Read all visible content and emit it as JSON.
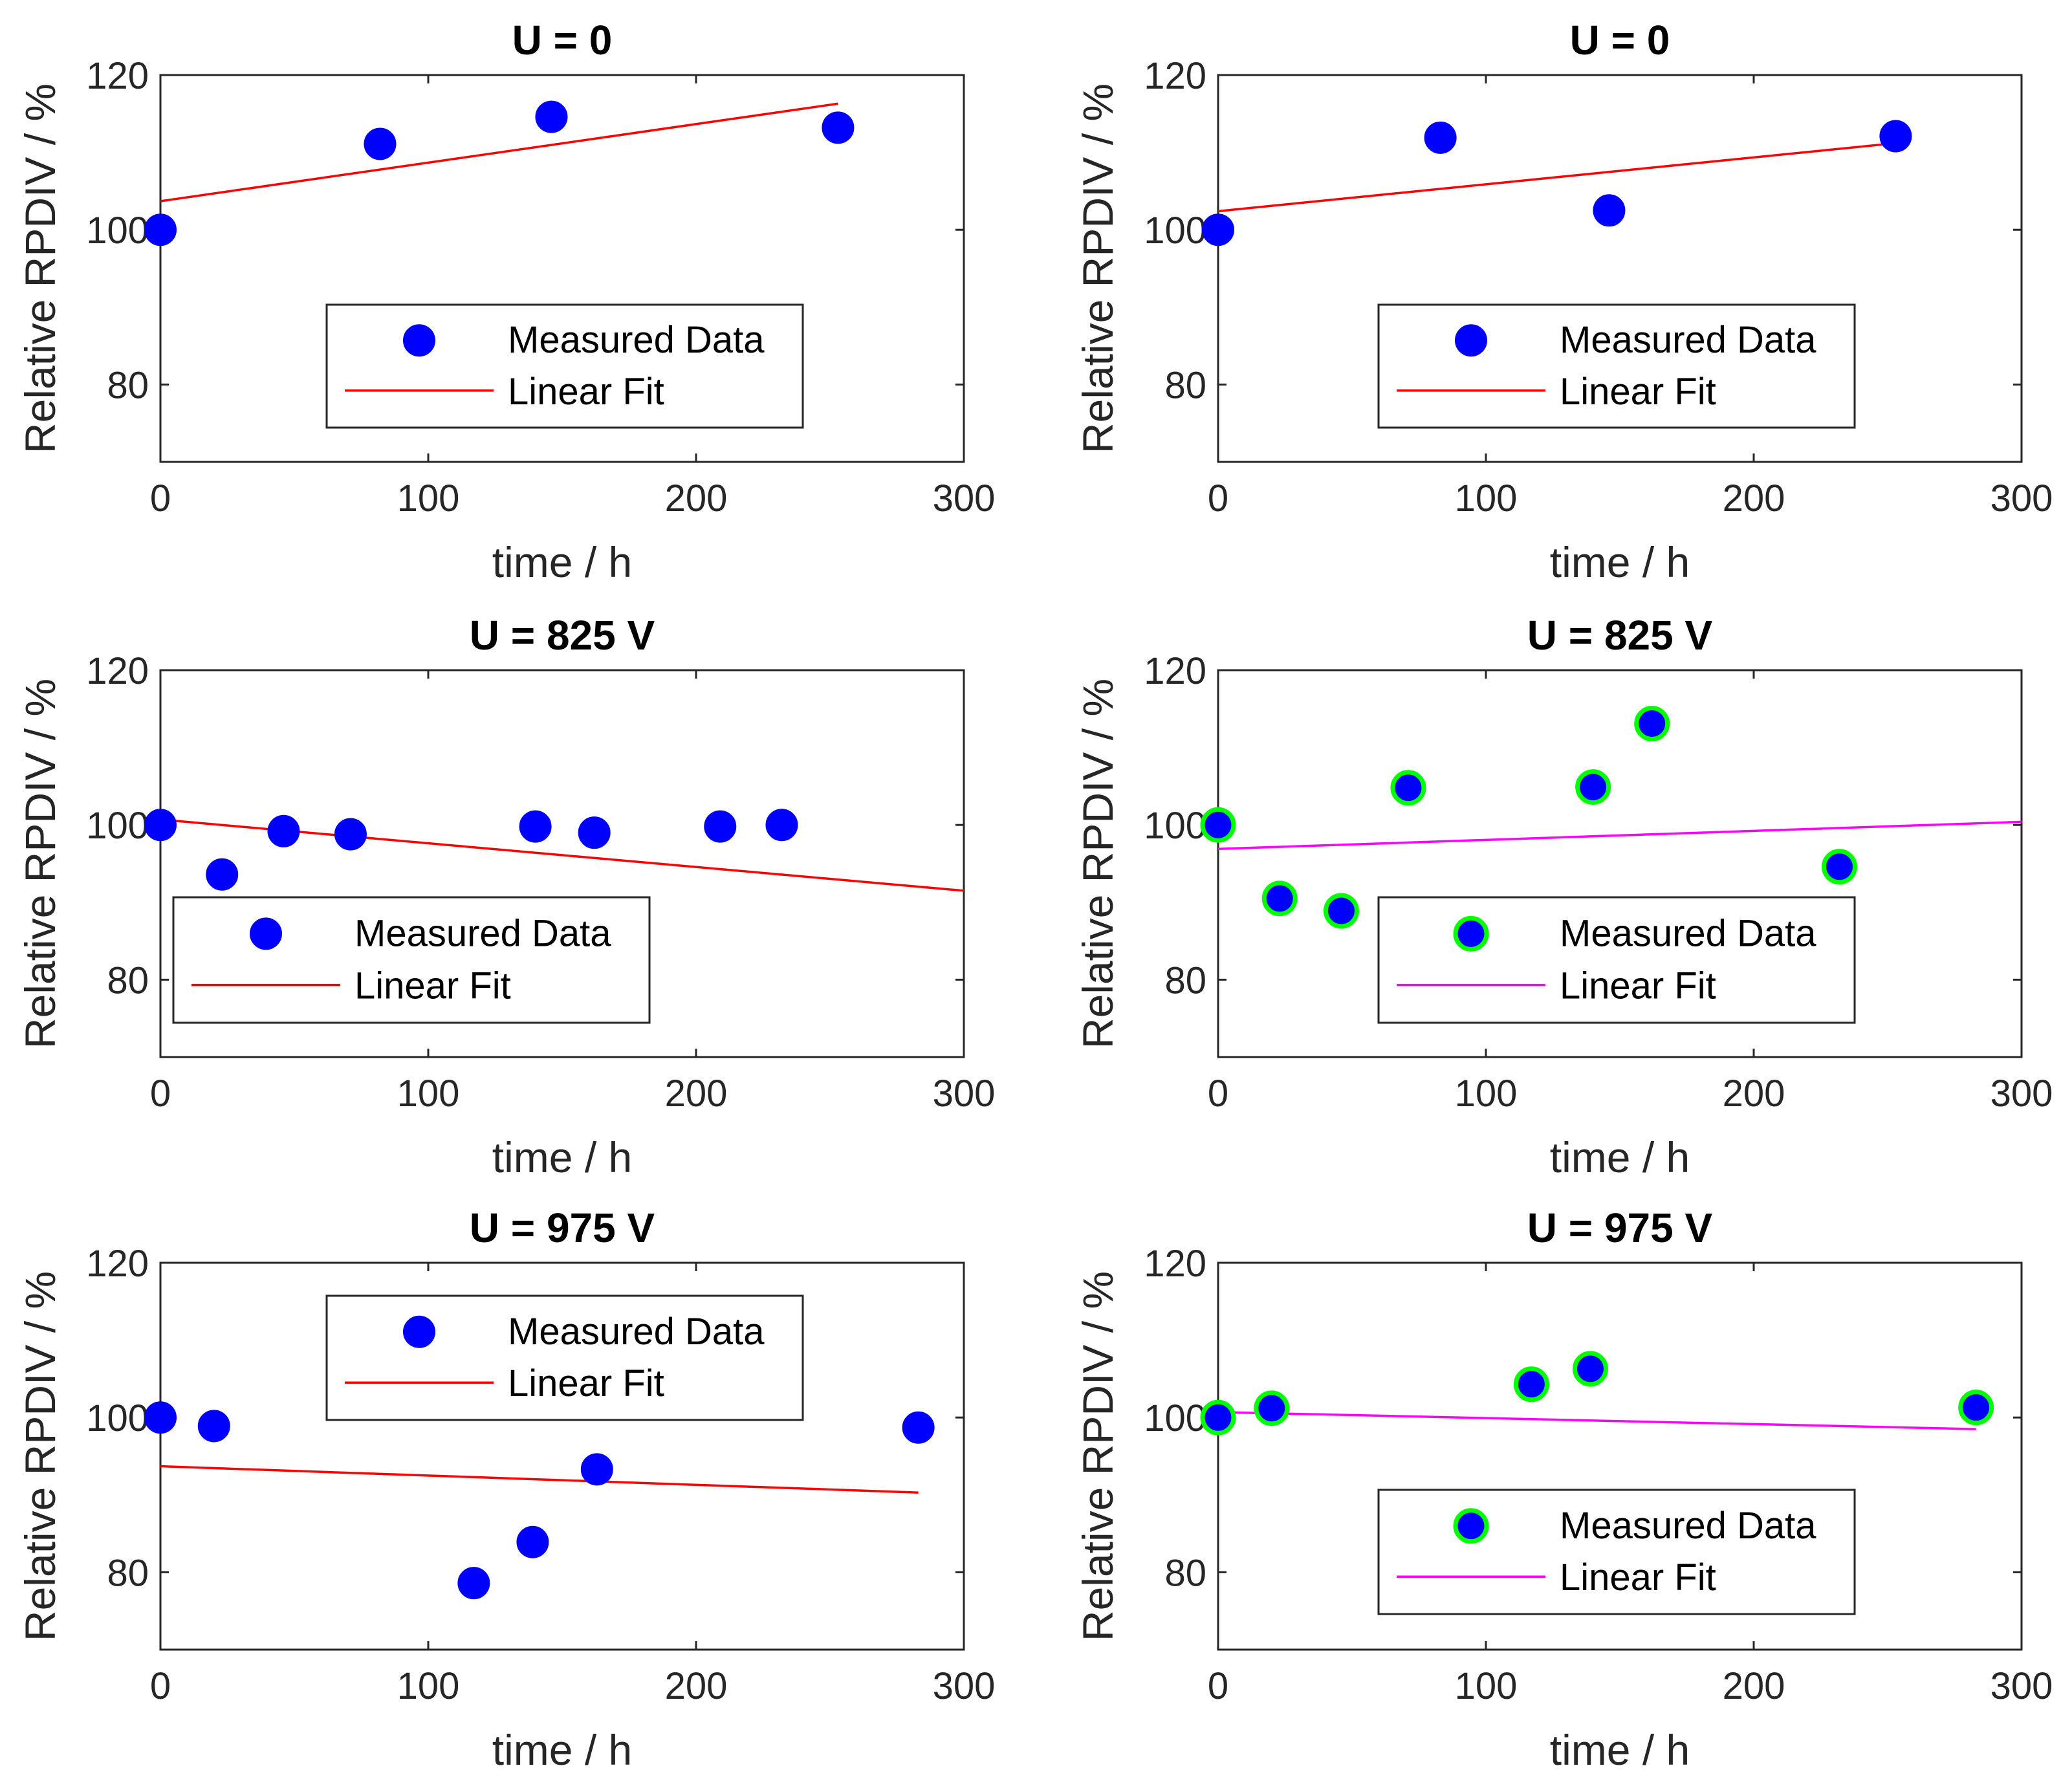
{
  "colors": {
    "marker_fill": "#0000ff",
    "marker_edge_green": "#00ff00",
    "fit_red": "#ff0000",
    "fit_magenta": "#ff00ff",
    "axis": "#262626",
    "text": "#000000"
  },
  "chart_data": [
    {
      "type": "scatter",
      "title": "U = 0",
      "xlabel": "time / h",
      "ylabel": "Relative RPDIV / %",
      "xlim": [
        0,
        300
      ],
      "ylim": [
        70,
        120
      ],
      "xticks": [
        0,
        100,
        200,
        300
      ],
      "yticks": [
        80,
        100,
        120
      ],
      "xtick_labels": [
        "0",
        "100",
        "200",
        "300"
      ],
      "ytick_labels": [
        "80",
        "100",
        "120"
      ],
      "grid": false,
      "legend": {
        "location": "lower-center",
        "entries": [
          "Measured Data",
          "Linear Fit"
        ]
      },
      "marker_edge": "blue",
      "fit_color": "red",
      "series": [
        {
          "name": "Measured Data",
          "x": [
            0,
            82,
            146,
            253
          ],
          "y": [
            100,
            111.1,
            114.6,
            113.2
          ]
        },
        {
          "name": "Linear Fit",
          "x": [
            0,
            253
          ],
          "y": [
            103.7,
            116.3
          ]
        }
      ]
    },
    {
      "type": "scatter",
      "title": "U = 0",
      "xlabel": "time / h",
      "ylabel": "Relative RPDIV / %",
      "xlim": [
        0,
        300
      ],
      "ylim": [
        70,
        120
      ],
      "xticks": [
        0,
        100,
        200,
        300
      ],
      "yticks": [
        80,
        100,
        120
      ],
      "xtick_labels": [
        "0",
        "100",
        "200",
        "300"
      ],
      "ytick_labels": [
        "80",
        "100",
        "120"
      ],
      "grid": false,
      "legend": {
        "location": "lower-center-right",
        "entries": [
          "Measured Data",
          "Linear Fit"
        ]
      },
      "marker_edge": "blue",
      "fit_color": "red",
      "series": [
        {
          "name": "Measured Data",
          "x": [
            0,
            83,
            146,
            253
          ],
          "y": [
            100,
            111.9,
            102.5,
            112.1
          ]
        },
        {
          "name": "Linear Fit",
          "x": [
            0,
            253
          ],
          "y": [
            102.4,
            111.2
          ]
        }
      ]
    },
    {
      "type": "scatter",
      "title": "U = 825 V",
      "xlabel": "time / h",
      "ylabel": "Relative RPDIV / %",
      "xlim": [
        0,
        300
      ],
      "ylim": [
        70,
        120
      ],
      "xticks": [
        0,
        100,
        200,
        300
      ],
      "yticks": [
        80,
        100,
        120
      ],
      "xtick_labels": [
        "0",
        "100",
        "200",
        "300"
      ],
      "ytick_labels": [
        "80",
        "100",
        "120"
      ],
      "grid": false,
      "legend": {
        "location": "lower-left",
        "entries": [
          "Measured Data",
          "Linear Fit"
        ]
      },
      "marker_edge": "blue",
      "fit_color": "red",
      "series": [
        {
          "name": "Measured Data",
          "x": [
            0,
            23,
            46,
            71,
            140,
            162,
            209,
            232
          ],
          "y": [
            100,
            93.6,
            99.2,
            98.8,
            99.8,
            99.0,
            99.8,
            100
          ]
        },
        {
          "name": "Linear Fit",
          "x": [
            0,
            300
          ],
          "y": [
            100.7,
            91.5
          ]
        }
      ]
    },
    {
      "type": "scatter",
      "title": "U = 825 V",
      "xlabel": "time / h",
      "ylabel": "Relative RPDIV / %",
      "xlim": [
        0,
        300
      ],
      "ylim": [
        70,
        120
      ],
      "xticks": [
        0,
        100,
        200,
        300
      ],
      "yticks": [
        80,
        100,
        120
      ],
      "xtick_labels": [
        "0",
        "100",
        "200",
        "300"
      ],
      "ytick_labels": [
        "80",
        "100",
        "120"
      ],
      "grid": false,
      "legend": {
        "location": "lower-center-right",
        "entries": [
          "Measured Data",
          "Linear Fit"
        ]
      },
      "marker_edge": "green",
      "fit_color": "magenta",
      "series": [
        {
          "name": "Measured Data",
          "x": [
            0,
            23,
            46,
            71,
            140,
            162,
            232
          ],
          "y": [
            100,
            90.5,
            88.9,
            104.8,
            104.9,
            113.1,
            94.6
          ]
        },
        {
          "name": "Linear Fit",
          "x": [
            0,
            300
          ],
          "y": [
            96.9,
            100.4
          ]
        }
      ]
    },
    {
      "type": "scatter",
      "title": "U = 975 V",
      "xlabel": "time / h",
      "ylabel": "Relative RPDIV / %",
      "xlim": [
        0,
        300
      ],
      "ylim": [
        70,
        120
      ],
      "xticks": [
        0,
        100,
        200,
        300
      ],
      "yticks": [
        80,
        100,
        120
      ],
      "xtick_labels": [
        "0",
        "100",
        "200",
        "300"
      ],
      "ytick_labels": [
        "80",
        "100",
        "120"
      ],
      "grid": false,
      "legend": {
        "location": "upper-center",
        "entries": [
          "Measured Data",
          "Linear Fit"
        ]
      },
      "marker_edge": "blue",
      "fit_color": "red",
      "series": [
        {
          "name": "Measured Data",
          "x": [
            0,
            20,
            117,
            139,
            163,
            283
          ],
          "y": [
            100,
            98.9,
            78.6,
            83.9,
            93.3,
            98.7
          ]
        },
        {
          "name": "Linear Fit",
          "x": [
            0,
            283
          ],
          "y": [
            93.7,
            90.3
          ]
        }
      ]
    },
    {
      "type": "scatter",
      "title": "U = 975 V",
      "xlabel": "time / h",
      "ylabel": "Relative RPDIV / %",
      "xlim": [
        0,
        300
      ],
      "ylim": [
        70,
        120
      ],
      "xticks": [
        0,
        100,
        200,
        300
      ],
      "yticks": [
        80,
        100,
        120
      ],
      "xtick_labels": [
        "0",
        "100",
        "200",
        "300"
      ],
      "ytick_labels": [
        "80",
        "100",
        "120"
      ],
      "grid": false,
      "legend": {
        "location": "lower-center-right",
        "entries": [
          "Measured Data",
          "Linear Fit"
        ]
      },
      "marker_edge": "green",
      "fit_color": "magenta",
      "series": [
        {
          "name": "Measured Data",
          "x": [
            0,
            20,
            117,
            139,
            283
          ],
          "y": [
            100,
            101.2,
            104.3,
            106.3,
            101.3
          ]
        },
        {
          "name": "Linear Fit",
          "x": [
            0,
            283
          ],
          "y": [
            100.7,
            98.5
          ]
        }
      ]
    }
  ]
}
